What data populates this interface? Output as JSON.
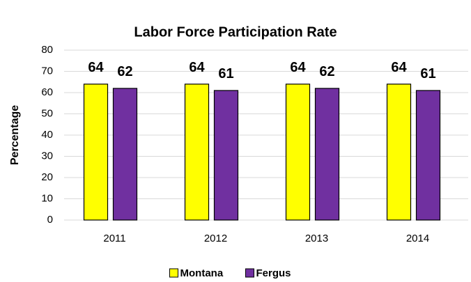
{
  "chart_data": {
    "type": "bar",
    "title": "Labor Force Participation Rate",
    "y_label": "Percentage",
    "categories": [
      "2011",
      "2012",
      "2013",
      "2014"
    ],
    "series": [
      {
        "name": "Montana",
        "color": "#ffff00",
        "values": [
          64,
          64,
          64,
          64
        ]
      },
      {
        "name": "Fergus",
        "color": "#7030a0",
        "values": [
          62,
          61,
          62,
          61
        ]
      }
    ],
    "ylim": [
      0,
      80
    ],
    "yticks": [
      0,
      10,
      20,
      30,
      40,
      50,
      60,
      70,
      80
    ],
    "grid": true,
    "legend": "bottom"
  }
}
